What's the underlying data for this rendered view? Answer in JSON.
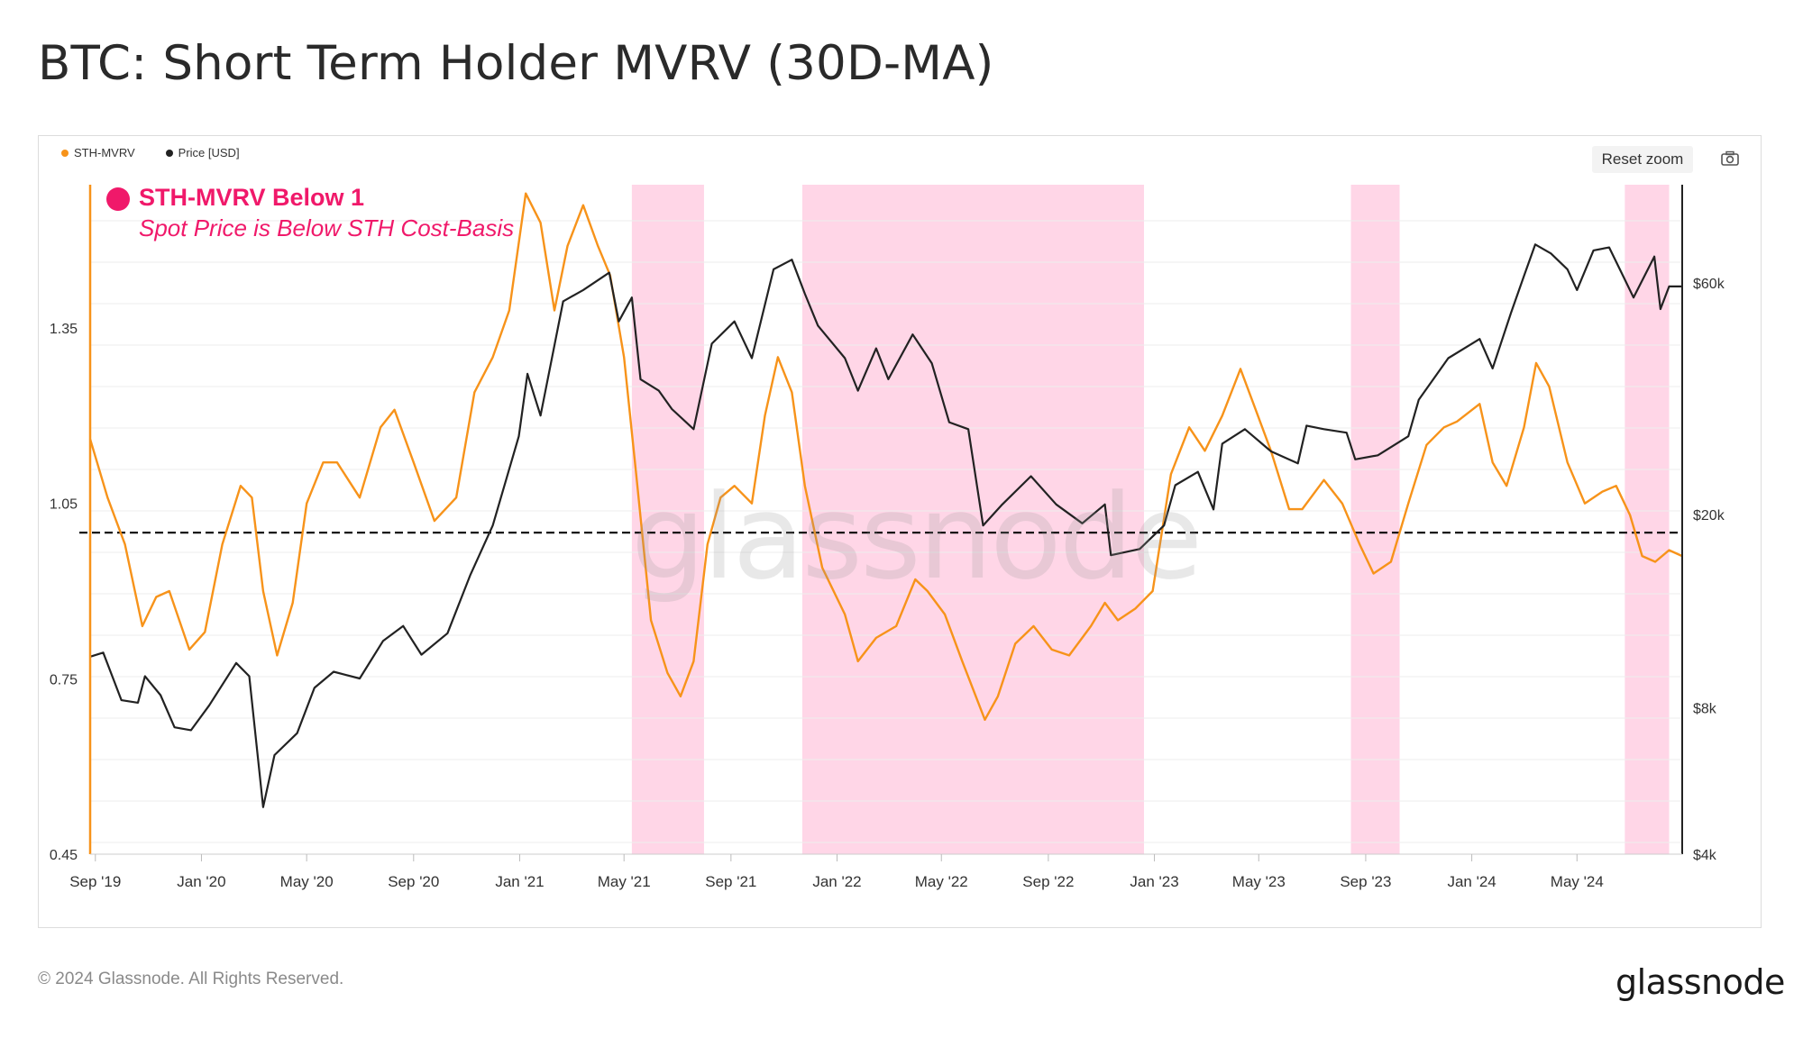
{
  "title": "BTC: Short Term Holder MVRV (30D-MA)",
  "legend": [
    {
      "label": "STH-MVRV",
      "color": "#f7931a"
    },
    {
      "label": "Price [USD]",
      "color": "#222222"
    }
  ],
  "toolbar": {
    "reset_zoom_label": "Reset zoom",
    "camera_icon": "camera-icon"
  },
  "annotation": {
    "title": "STH-MVRV Below 1",
    "subtitle": "Spot Price is Below STH Cost-Basis",
    "color": "#f0196a"
  },
  "watermark": "glassnode",
  "footer": {
    "copyright": "© 2024 Glassnode. All Rights Reserved.",
    "brand": "glassnode"
  },
  "colors": {
    "mvrv": "#f7931a",
    "price": "#222222",
    "band": "#ffd6e7",
    "grid": "#eeeeee",
    "axis": "#f7931a"
  },
  "chart_data": {
    "type": "line",
    "title": "BTC: Short Term Holder MVRV (30D-MA)",
    "x_ticks": [
      "Sep '19",
      "Jan '20",
      "May '20",
      "Sep '20",
      "Jan '21",
      "May '21",
      "Sep '21",
      "Jan '22",
      "May '22",
      "Sep '22",
      "Jan '23",
      "May '23",
      "Sep '23",
      "Jan '24",
      "May '24"
    ],
    "x_range": [
      "2019-08-26",
      "2024-08-30"
    ],
    "y_left": {
      "ticks": [
        "1.35",
        "1.05",
        "0.75",
        "0.45"
      ],
      "tick_values": [
        1.35,
        1.05,
        0.75,
        0.45
      ],
      "range": [
        0.45,
        1.595
      ]
    },
    "y_right": {
      "ticks": [
        "$60k",
        "$20k",
        "$8k",
        "$4k"
      ],
      "tick_values": [
        60000,
        20000,
        8000,
        4000
      ],
      "scale": "log"
    },
    "reference_line": {
      "y": 1.0,
      "style": "dashed"
    },
    "shaded_ranges": [
      {
        "start": "2021-05-10",
        "end": "2021-08-01"
      },
      {
        "start": "2021-11-22",
        "end": "2022-12-20"
      },
      {
        "start": "2023-08-15",
        "end": "2023-10-10"
      },
      {
        "start": "2024-06-25",
        "end": "2024-08-15"
      }
    ],
    "series": [
      {
        "name": "STH-MVRV",
        "axis": "left",
        "points": [
          [
            "2019-08-26",
            1.16
          ],
          [
            "2019-09-15",
            1.06
          ],
          [
            "2019-10-05",
            0.98
          ],
          [
            "2019-10-25",
            0.84
          ],
          [
            "2019-11-10",
            0.89
          ],
          [
            "2019-11-25",
            0.9
          ],
          [
            "2019-12-18",
            0.8
          ],
          [
            "2020-01-05",
            0.83
          ],
          [
            "2020-01-25",
            0.98
          ],
          [
            "2020-02-15",
            1.08
          ],
          [
            "2020-02-28",
            1.06
          ],
          [
            "2020-03-12",
            0.9
          ],
          [
            "2020-03-28",
            0.79
          ],
          [
            "2020-04-15",
            0.88
          ],
          [
            "2020-05-01",
            1.05
          ],
          [
            "2020-05-20",
            1.12
          ],
          [
            "2020-06-05",
            1.12
          ],
          [
            "2020-07-01",
            1.06
          ],
          [
            "2020-07-25",
            1.18
          ],
          [
            "2020-08-10",
            1.21
          ],
          [
            "2020-09-01",
            1.12
          ],
          [
            "2020-09-25",
            1.02
          ],
          [
            "2020-10-20",
            1.06
          ],
          [
            "2020-11-10",
            1.24
          ],
          [
            "2020-12-01",
            1.3
          ],
          [
            "2020-12-20",
            1.38
          ],
          [
            "2021-01-08",
            1.58
          ],
          [
            "2021-01-25",
            1.53
          ],
          [
            "2021-02-10",
            1.38
          ],
          [
            "2021-02-25",
            1.49
          ],
          [
            "2021-03-15",
            1.56
          ],
          [
            "2021-04-01",
            1.49
          ],
          [
            "2021-04-15",
            1.44
          ],
          [
            "2021-05-01",
            1.3
          ],
          [
            "2021-05-15",
            1.1
          ],
          [
            "2021-06-01",
            0.85
          ],
          [
            "2021-06-20",
            0.76
          ],
          [
            "2021-07-05",
            0.72
          ],
          [
            "2021-07-20",
            0.78
          ],
          [
            "2021-08-05",
            0.98
          ],
          [
            "2021-08-20",
            1.06
          ],
          [
            "2021-09-05",
            1.08
          ],
          [
            "2021-09-25",
            1.05
          ],
          [
            "2021-10-10",
            1.2
          ],
          [
            "2021-10-25",
            1.3
          ],
          [
            "2021-11-10",
            1.24
          ],
          [
            "2021-11-25",
            1.08
          ],
          [
            "2021-12-15",
            0.94
          ],
          [
            "2022-01-10",
            0.86
          ],
          [
            "2022-01-25",
            0.78
          ],
          [
            "2022-02-15",
            0.82
          ],
          [
            "2022-03-10",
            0.84
          ],
          [
            "2022-04-01",
            0.92
          ],
          [
            "2022-04-15",
            0.9
          ],
          [
            "2022-05-05",
            0.86
          ],
          [
            "2022-05-25",
            0.78
          ],
          [
            "2022-06-20",
            0.68
          ],
          [
            "2022-07-05",
            0.72
          ],
          [
            "2022-07-25",
            0.81
          ],
          [
            "2022-08-15",
            0.84
          ],
          [
            "2022-09-05",
            0.8
          ],
          [
            "2022-09-25",
            0.79
          ],
          [
            "2022-10-20",
            0.84
          ],
          [
            "2022-11-05",
            0.88
          ],
          [
            "2022-11-20",
            0.85
          ],
          [
            "2022-12-10",
            0.87
          ],
          [
            "2022-12-30",
            0.9
          ],
          [
            "2023-01-20",
            1.1
          ],
          [
            "2023-02-10",
            1.18
          ],
          [
            "2023-02-28",
            1.14
          ],
          [
            "2023-03-20",
            1.2
          ],
          [
            "2023-04-10",
            1.28
          ],
          [
            "2023-04-25",
            1.22
          ],
          [
            "2023-05-15",
            1.14
          ],
          [
            "2023-06-05",
            1.04
          ],
          [
            "2023-06-20",
            1.04
          ],
          [
            "2023-07-15",
            1.09
          ],
          [
            "2023-08-05",
            1.05
          ],
          [
            "2023-08-25",
            0.98
          ],
          [
            "2023-09-10",
            0.93
          ],
          [
            "2023-09-30",
            0.95
          ],
          [
            "2023-10-20",
            1.05
          ],
          [
            "2023-11-10",
            1.15
          ],
          [
            "2023-11-30",
            1.18
          ],
          [
            "2023-12-15",
            1.19
          ],
          [
            "2024-01-10",
            1.22
          ],
          [
            "2024-01-25",
            1.12
          ],
          [
            "2024-02-10",
            1.08
          ],
          [
            "2024-03-01",
            1.18
          ],
          [
            "2024-03-15",
            1.29
          ],
          [
            "2024-03-30",
            1.25
          ],
          [
            "2024-04-20",
            1.12
          ],
          [
            "2024-05-10",
            1.05
          ],
          [
            "2024-05-30",
            1.07
          ],
          [
            "2024-06-15",
            1.08
          ],
          [
            "2024-07-01",
            1.03
          ],
          [
            "2024-07-15",
            0.96
          ],
          [
            "2024-07-30",
            0.95
          ],
          [
            "2024-08-15",
            0.97
          ],
          [
            "2024-08-30",
            0.96
          ]
        ]
      },
      {
        "name": "Price [USD]",
        "axis": "right",
        "points": [
          [
            "2019-08-26",
            10200
          ],
          [
            "2019-09-10",
            10400
          ],
          [
            "2019-10-01",
            8300
          ],
          [
            "2019-10-20",
            8200
          ],
          [
            "2019-10-28",
            9300
          ],
          [
            "2019-11-15",
            8500
          ],
          [
            "2019-12-01",
            7300
          ],
          [
            "2019-12-20",
            7200
          ],
          [
            "2020-01-10",
            8100
          ],
          [
            "2020-02-10",
            9900
          ],
          [
            "2020-02-25",
            9300
          ],
          [
            "2020-03-12",
            5000
          ],
          [
            "2020-03-25",
            6400
          ],
          [
            "2020-04-20",
            7100
          ],
          [
            "2020-05-10",
            8800
          ],
          [
            "2020-06-01",
            9500
          ],
          [
            "2020-07-01",
            9200
          ],
          [
            "2020-07-28",
            11000
          ],
          [
            "2020-08-20",
            11800
          ],
          [
            "2020-09-10",
            10300
          ],
          [
            "2020-10-10",
            11400
          ],
          [
            "2020-11-05",
            15000
          ],
          [
            "2020-12-01",
            19000
          ],
          [
            "2020-12-31",
            29000
          ],
          [
            "2021-01-10",
            39000
          ],
          [
            "2021-01-25",
            32000
          ],
          [
            "2021-02-20",
            55000
          ],
          [
            "2021-03-15",
            58000
          ],
          [
            "2021-04-14",
            63000
          ],
          [
            "2021-04-25",
            50000
          ],
          [
            "2021-05-10",
            56000
          ],
          [
            "2021-05-20",
            38000
          ],
          [
            "2021-06-10",
            36000
          ],
          [
            "2021-06-25",
            33000
          ],
          [
            "2021-07-20",
            30000
          ],
          [
            "2021-08-10",
            45000
          ],
          [
            "2021-09-05",
            50000
          ],
          [
            "2021-09-25",
            42000
          ],
          [
            "2021-10-20",
            64000
          ],
          [
            "2021-11-10",
            67000
          ],
          [
            "2021-11-25",
            57000
          ],
          [
            "2021-12-10",
            49000
          ],
          [
            "2022-01-10",
            42000
          ],
          [
            "2022-01-25",
            36000
          ],
          [
            "2022-02-15",
            44000
          ],
          [
            "2022-03-01",
            38000
          ],
          [
            "2022-03-29",
            47000
          ],
          [
            "2022-04-20",
            41000
          ],
          [
            "2022-05-10",
            31000
          ],
          [
            "2022-06-01",
            30000
          ],
          [
            "2022-06-18",
            19000
          ],
          [
            "2022-07-10",
            21000
          ],
          [
            "2022-08-12",
            24000
          ],
          [
            "2022-09-10",
            21000
          ],
          [
            "2022-10-10",
            19200
          ],
          [
            "2022-11-05",
            21000
          ],
          [
            "2022-11-12",
            16500
          ],
          [
            "2022-12-15",
            17000
          ],
          [
            "2023-01-12",
            19000
          ],
          [
            "2023-01-25",
            23000
          ],
          [
            "2023-02-20",
            24500
          ],
          [
            "2023-03-10",
            20500
          ],
          [
            "2023-03-20",
            28000
          ],
          [
            "2023-04-15",
            30000
          ],
          [
            "2023-05-15",
            27000
          ],
          [
            "2023-06-15",
            25500
          ],
          [
            "2023-06-25",
            30500
          ],
          [
            "2023-07-15",
            30000
          ],
          [
            "2023-08-10",
            29500
          ],
          [
            "2023-08-20",
            26000
          ],
          [
            "2023-09-15",
            26500
          ],
          [
            "2023-10-20",
            29000
          ],
          [
            "2023-11-01",
            34500
          ],
          [
            "2023-12-05",
            42000
          ],
          [
            "2024-01-10",
            46000
          ],
          [
            "2024-01-25",
            40000
          ],
          [
            "2024-02-15",
            52000
          ],
          [
            "2024-03-01",
            62000
          ],
          [
            "2024-03-14",
            72000
          ],
          [
            "2024-04-01",
            69000
          ],
          [
            "2024-04-20",
            64000
          ],
          [
            "2024-05-01",
            58000
          ],
          [
            "2024-05-20",
            70000
          ],
          [
            "2024-06-07",
            71000
          ],
          [
            "2024-06-25",
            61000
          ],
          [
            "2024-07-05",
            56000
          ],
          [
            "2024-07-29",
            68000
          ],
          [
            "2024-08-05",
            53000
          ],
          [
            "2024-08-15",
            59000
          ],
          [
            "2024-08-30",
            59000
          ]
        ]
      }
    ]
  }
}
